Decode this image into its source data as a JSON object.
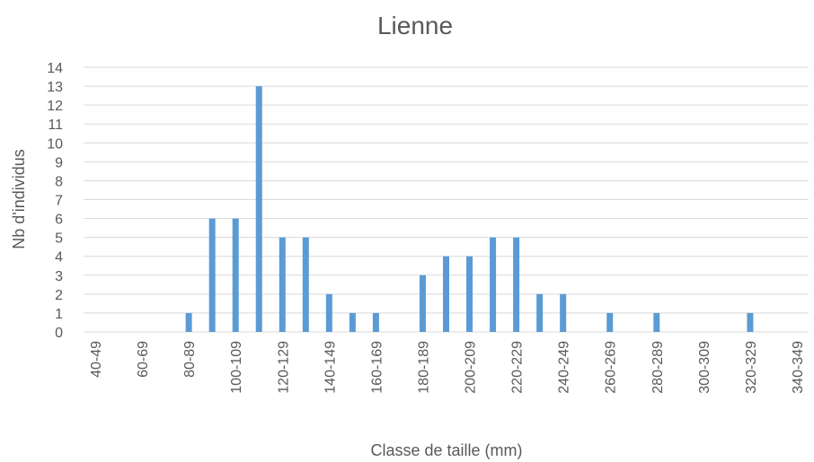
{
  "chart_data": {
    "type": "bar",
    "title": "Lienne",
    "x_label": "Classe de taille (mm)",
    "y_label": "Nb d'individus",
    "categories": [
      "40-49",
      null,
      "60-69",
      null,
      "80-89",
      null,
      "100-109",
      null,
      "120-129",
      null,
      "140-149",
      null,
      "160-169",
      null,
      "180-189",
      null,
      "200-209",
      null,
      "220-229",
      null,
      "240-249",
      null,
      "260-269",
      null,
      "280-289",
      null,
      "300-309",
      null,
      "320-329",
      null,
      "340-349"
    ],
    "values": [
      0,
      0,
      0,
      0,
      1,
      6,
      6,
      13,
      5,
      5,
      2,
      1,
      1,
      0,
      3,
      4,
      4,
      5,
      5,
      2,
      2,
      0,
      1,
      0,
      1,
      0,
      0,
      0,
      1,
      0,
      0
    ],
    "color": "#5b9bd5",
    "ylim": [
      0,
      14
    ],
    "yticks": [
      0,
      1,
      2,
      3,
      4,
      5,
      6,
      7,
      8,
      9,
      10,
      11,
      12,
      13,
      14
    ],
    "grid": true
  }
}
